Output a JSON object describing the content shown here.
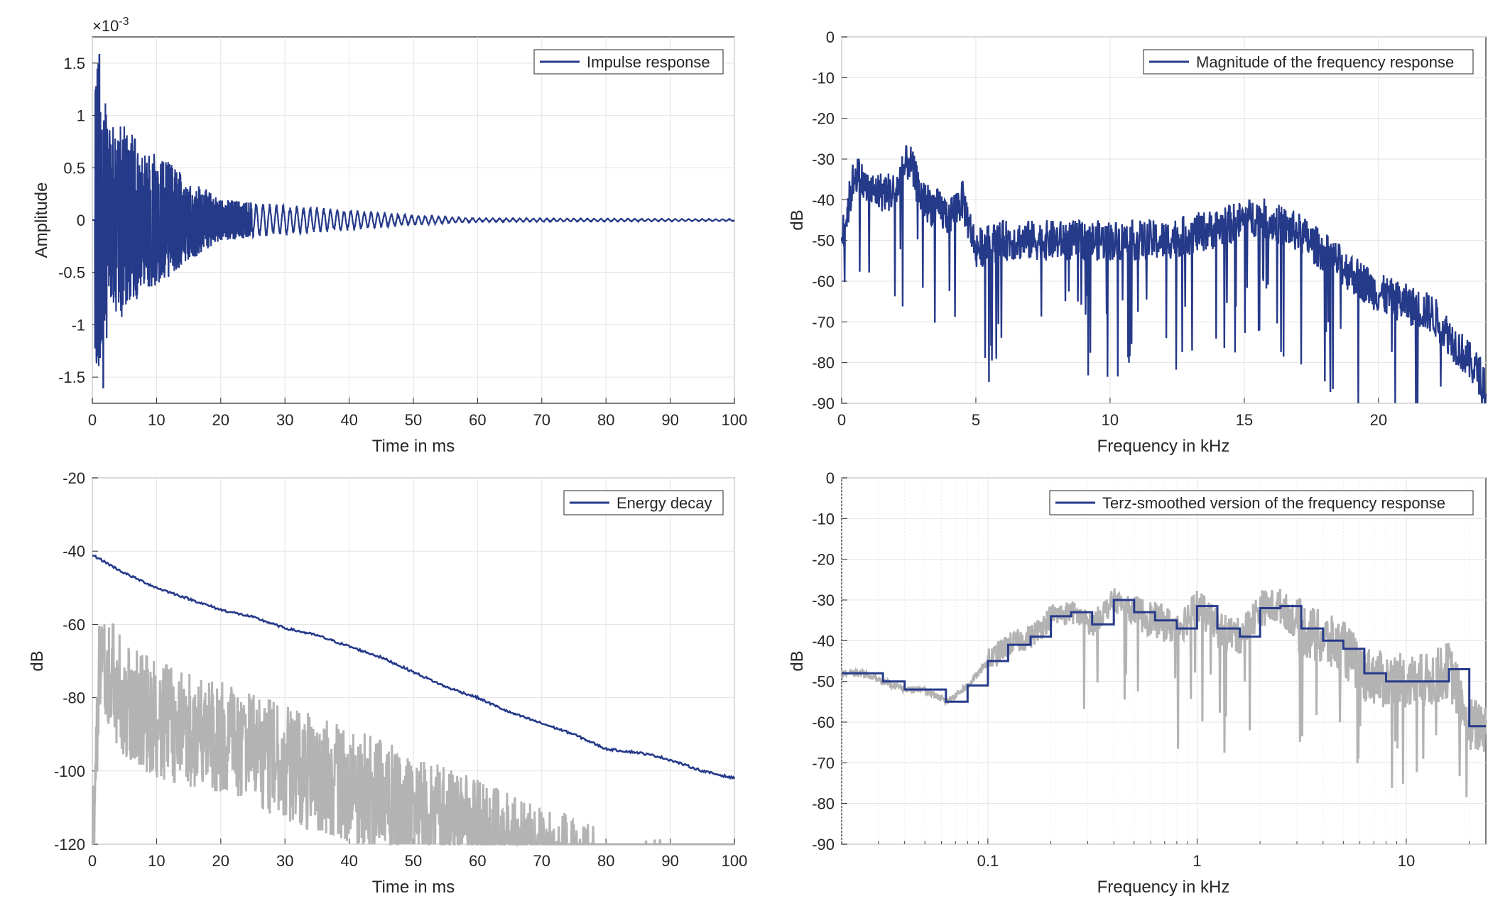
{
  "chart_data": [
    {
      "type": "line",
      "series": [
        {
          "name": "Impulse response",
          "color": "#263a8a"
        }
      ],
      "xlabel": "Time in ms",
      "ylabel": "Amplitude",
      "xlim": [
        0,
        100
      ],
      "ylim": [
        -1.75,
        1.75
      ],
      "xticks": [
        "0",
        "10",
        "20",
        "30",
        "40",
        "50",
        "60",
        "70",
        "80",
        "90",
        "100"
      ],
      "yticks": [
        "-1.5",
        "-1",
        "-0.5",
        "0",
        "0.5",
        "1",
        "1.5"
      ],
      "exponent_label": "×10",
      "exponent_power": "-3",
      "grid": true,
      "legend_position": "top-right",
      "envelope": {
        "description_points_ms": [
          0.5,
          1,
          2,
          3,
          5,
          8,
          10,
          15,
          20,
          30,
          40,
          50,
          60,
          100
        ],
        "peak_amplitude_e3": [
          1.58,
          1.58,
          1.2,
          0.9,
          0.95,
          0.65,
          0.65,
          0.4,
          0.2,
          0.15,
          0.1,
          0.05,
          0.02,
          0.01
        ]
      }
    },
    {
      "type": "line",
      "series": [
        {
          "name": "Magnitude of the frequency response",
          "color": "#263a8a"
        }
      ],
      "xlabel": "Frequency in kHz",
      "ylabel": "dB",
      "xlim": [
        0,
        24
      ],
      "ylim": [
        -90,
        0
      ],
      "xticks": [
        "0",
        "5",
        "10",
        "15",
        "20"
      ],
      "yticks": [
        "0",
        "-10",
        "-20",
        "-30",
        "-40",
        "-50",
        "-60",
        "-70",
        "-80",
        "-90"
      ],
      "grid": true,
      "legend_position": "top-right",
      "trend_khz": [
        0,
        0.5,
        1,
        2,
        2.5,
        3,
        4,
        4.5,
        5,
        6,
        8,
        10,
        12,
        14,
        15.5,
        17,
        18,
        19,
        20,
        22,
        24
      ],
      "trend_db": [
        -50,
        -33,
        -38,
        -38,
        -30,
        -40,
        -44,
        -40,
        -52,
        -50,
        -50,
        -50,
        -50,
        -47,
        -44,
        -48,
        -53,
        -58,
        -63,
        -68,
        -85
      ]
    },
    {
      "type": "line",
      "series": [
        {
          "name": "Energy decay",
          "color": "#263a8a",
          "x": [
            0,
            2,
            5,
            10,
            15,
            20,
            25,
            30,
            35,
            40,
            45,
            50,
            55,
            60,
            65,
            70,
            75,
            80,
            85,
            88,
            90,
            95,
            100
          ],
          "y": [
            -41,
            -43,
            -46,
            -50,
            -53,
            -56,
            -58,
            -61,
            -63,
            -66,
            -69,
            -73,
            -77,
            -80,
            -84,
            -87,
            -90,
            -94,
            -95,
            -96,
            -97,
            -100,
            -102
          ]
        },
        {
          "name": "",
          "color": "#b3b3b3",
          "x": [
            0,
            1,
            2,
            5,
            10,
            20,
            30,
            40,
            50,
            60,
            70,
            75,
            78,
            85,
            90
          ],
          "y_top": [
            -105,
            -60,
            -56,
            -65,
            -70,
            -75,
            -82,
            -88,
            -95,
            -102,
            -110,
            -112,
            -115,
            -118,
            -118
          ]
        }
      ],
      "xlabel": "Time in ms",
      "ylabel": "dB",
      "xlim": [
        0,
        100
      ],
      "ylim": [
        -120,
        -20
      ],
      "xticks": [
        "0",
        "10",
        "20",
        "30",
        "40",
        "50",
        "60",
        "70",
        "80",
        "90",
        "100"
      ],
      "yticks": [
        "-20",
        "-40",
        "-60",
        "-80",
        "-100",
        "-120"
      ],
      "grid": true,
      "legend_position": "top-right"
    },
    {
      "type": "line",
      "series": [
        {
          "name": "Terz-smoothed version of the frequency response",
          "color": "#263a8a",
          "x": [
            0.02,
            0.025,
            0.0315,
            0.04,
            0.05,
            0.063,
            0.08,
            0.1,
            0.125,
            0.16,
            0.2,
            0.25,
            0.315,
            0.4,
            0.5,
            0.63,
            0.8,
            1,
            1.25,
            1.6,
            2,
            2.5,
            3.15,
            4,
            5,
            6.3,
            8,
            10,
            12.5,
            16,
            20,
            24
          ],
          "y": [
            -48,
            -48,
            -50,
            -52,
            -52,
            -55,
            -51,
            -45,
            -41,
            -39,
            -34,
            -33,
            -36,
            -30,
            -33,
            -35,
            -37,
            -31.5,
            -37,
            -39,
            -32,
            -31.5,
            -37,
            -40,
            -42,
            -48,
            -50,
            -50,
            -50,
            -47,
            -61,
            -61
          ]
        },
        {
          "name": "",
          "color": "#b3b3b3"
        }
      ],
      "xlabel": "Frequency in kHz",
      "ylabel": "dB",
      "xscale": "log",
      "xlim": [
        0.02,
        24
      ],
      "ylim": [
        -90,
        0
      ],
      "xticks": [
        "0.1",
        "1",
        "10"
      ],
      "yticks": [
        "0",
        "-10",
        "-20",
        "-30",
        "-40",
        "-50",
        "-60",
        "-70",
        "-80",
        "-90"
      ],
      "grid": true,
      "legend_position": "top-right"
    }
  ]
}
